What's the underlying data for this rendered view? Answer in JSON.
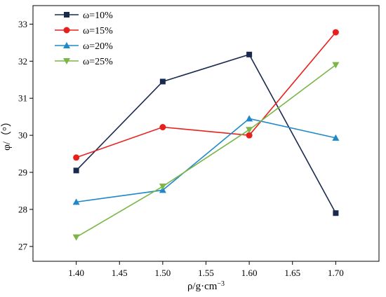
{
  "chart_data": {
    "type": "line",
    "xlabel": "ρ/g·cm",
    "xlabel_sup": "−3",
    "ylabel": "φ/（°）",
    "x": [
      1.4,
      1.5,
      1.6,
      1.7
    ],
    "xlim": [
      1.35,
      1.75
    ],
    "ylim": [
      26.6,
      33.5
    ],
    "xticks": [
      1.4,
      1.45,
      1.5,
      1.55,
      1.6,
      1.65,
      1.7
    ],
    "xtick_labels": [
      "1.40",
      "1.45",
      "1.50",
      "1.55",
      "1.60",
      "1.65",
      "1.70"
    ],
    "yticks": [
      27,
      28,
      29,
      30,
      31,
      32,
      33
    ],
    "ytick_labels": [
      "27",
      "28",
      "29",
      "30",
      "31",
      "32",
      "33"
    ],
    "grid": false,
    "legend_position": "top-left",
    "series": [
      {
        "name": "ω=10%",
        "values": [
          29.05,
          31.45,
          32.18,
          27.9
        ],
        "color": "#1a2a4f",
        "marker": "square"
      },
      {
        "name": "ω=15%",
        "values": [
          29.4,
          30.22,
          30.0,
          32.78
        ],
        "color": "#e8201c",
        "marker": "circle"
      },
      {
        "name": "ω=20%",
        "values": [
          28.2,
          28.52,
          30.45,
          29.93
        ],
        "color": "#1e88c8",
        "marker": "triangle-up"
      },
      {
        "name": "ω=25%",
        "values": [
          27.25,
          28.62,
          30.15,
          31.9
        ],
        "color": "#7ab648",
        "marker": "triangle-down"
      }
    ]
  }
}
